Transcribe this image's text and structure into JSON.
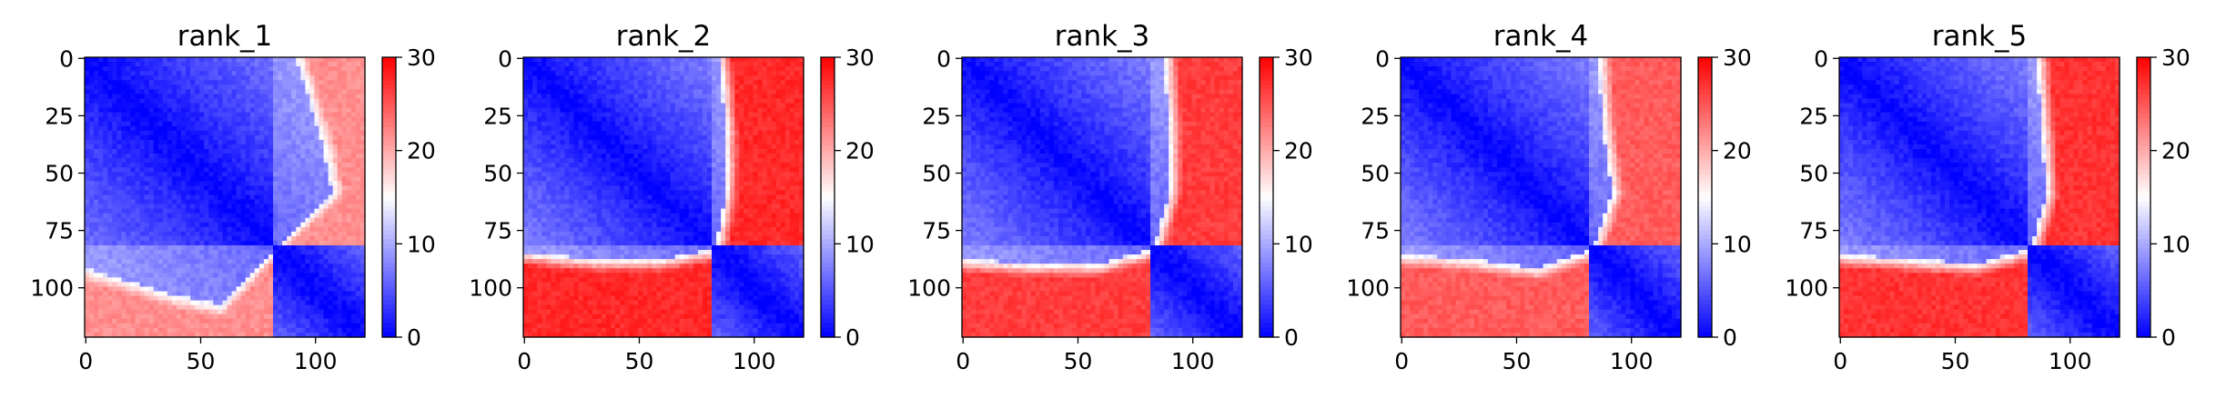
{
  "chart_data": [
    {
      "type": "heatmap",
      "title": "rank_1",
      "matrix_size": 122,
      "x_ticks": [
        0,
        50,
        100
      ],
      "y_ticks": [
        0,
        25,
        50,
        75,
        100
      ],
      "colorbar": {
        "min": 0,
        "max": 30,
        "ticks": [
          0,
          10,
          20,
          30
        ],
        "colormap": "bwr"
      },
      "domains": [
        [
          0,
          82
        ],
        [
          82,
          122
        ]
      ],
      "boundary_profile": [
        [
          0,
          92
        ],
        [
          20,
          98
        ],
        [
          40,
          104
        ],
        [
          60,
          108
        ],
        [
          82,
          84
        ],
        [
          100,
          70
        ],
        [
          121,
          68
        ]
      ],
      "inter_domain_level": 0.72,
      "intra_domain_near": 0.0,
      "intra_domain_far": 0.22
    },
    {
      "type": "heatmap",
      "title": "rank_2",
      "matrix_size": 122,
      "x_ticks": [
        0,
        50,
        100
      ],
      "y_ticks": [
        0,
        25,
        50,
        75,
        100
      ],
      "colorbar": {
        "min": 0,
        "max": 30,
        "ticks": [
          0,
          10,
          20,
          30
        ],
        "colormap": "bwr"
      },
      "domains": [
        [
          0,
          82
        ],
        [
          82,
          122
        ]
      ],
      "boundary_profile": [
        [
          0,
          85
        ],
        [
          30,
          88
        ],
        [
          60,
          88
        ],
        [
          82,
          84
        ],
        [
          100,
          80
        ],
        [
          121,
          78
        ]
      ],
      "inter_domain_level": 0.92,
      "intra_domain_near": 0.0,
      "intra_domain_far": 0.25
    },
    {
      "type": "heatmap",
      "title": "rank_3",
      "matrix_size": 122,
      "x_ticks": [
        0,
        50,
        100
      ],
      "y_ticks": [
        0,
        25,
        50,
        75,
        100
      ],
      "colorbar": {
        "min": 0,
        "max": 30,
        "ticks": [
          0,
          10,
          20,
          30
        ],
        "colormap": "bwr"
      },
      "domains": [
        [
          0,
          82
        ],
        [
          82,
          122
        ]
      ],
      "boundary_profile": [
        [
          0,
          88
        ],
        [
          30,
          90
        ],
        [
          60,
          90
        ],
        [
          82,
          84
        ],
        [
          100,
          78
        ],
        [
          121,
          77
        ]
      ],
      "inter_domain_level": 0.88,
      "intra_domain_near": 0.0,
      "intra_domain_far": 0.25
    },
    {
      "type": "heatmap",
      "title": "rank_4",
      "matrix_size": 122,
      "x_ticks": [
        0,
        50,
        100
      ],
      "y_ticks": [
        0,
        25,
        50,
        75,
        100
      ],
      "colorbar": {
        "min": 0,
        "max": 30,
        "ticks": [
          0,
          10,
          20,
          30
        ],
        "colormap": "bwr"
      },
      "domains": [
        [
          0,
          82
        ],
        [
          82,
          122
        ]
      ],
      "boundary_profile": [
        [
          0,
          86
        ],
        [
          30,
          88
        ],
        [
          60,
          92
        ],
        [
          82,
          84
        ],
        [
          100,
          74
        ],
        [
          121,
          72
        ]
      ],
      "inter_domain_level": 0.82,
      "intra_domain_near": 0.0,
      "intra_domain_far": 0.25
    },
    {
      "type": "heatmap",
      "title": "rank_5",
      "matrix_size": 122,
      "x_ticks": [
        0,
        50,
        100
      ],
      "y_ticks": [
        0,
        25,
        50,
        75,
        100
      ],
      "colorbar": {
        "min": 0,
        "max": 30,
        "ticks": [
          0,
          10,
          20,
          30
        ],
        "colormap": "bwr"
      },
      "domains": [
        [
          0,
          82
        ],
        [
          82,
          122
        ]
      ],
      "boundary_profile": [
        [
          0,
          86
        ],
        [
          30,
          88
        ],
        [
          60,
          90
        ],
        [
          82,
          84
        ],
        [
          100,
          76
        ],
        [
          121,
          75
        ]
      ],
      "inter_domain_level": 0.9,
      "intra_domain_near": 0.0,
      "intra_domain_far": 0.25
    }
  ]
}
